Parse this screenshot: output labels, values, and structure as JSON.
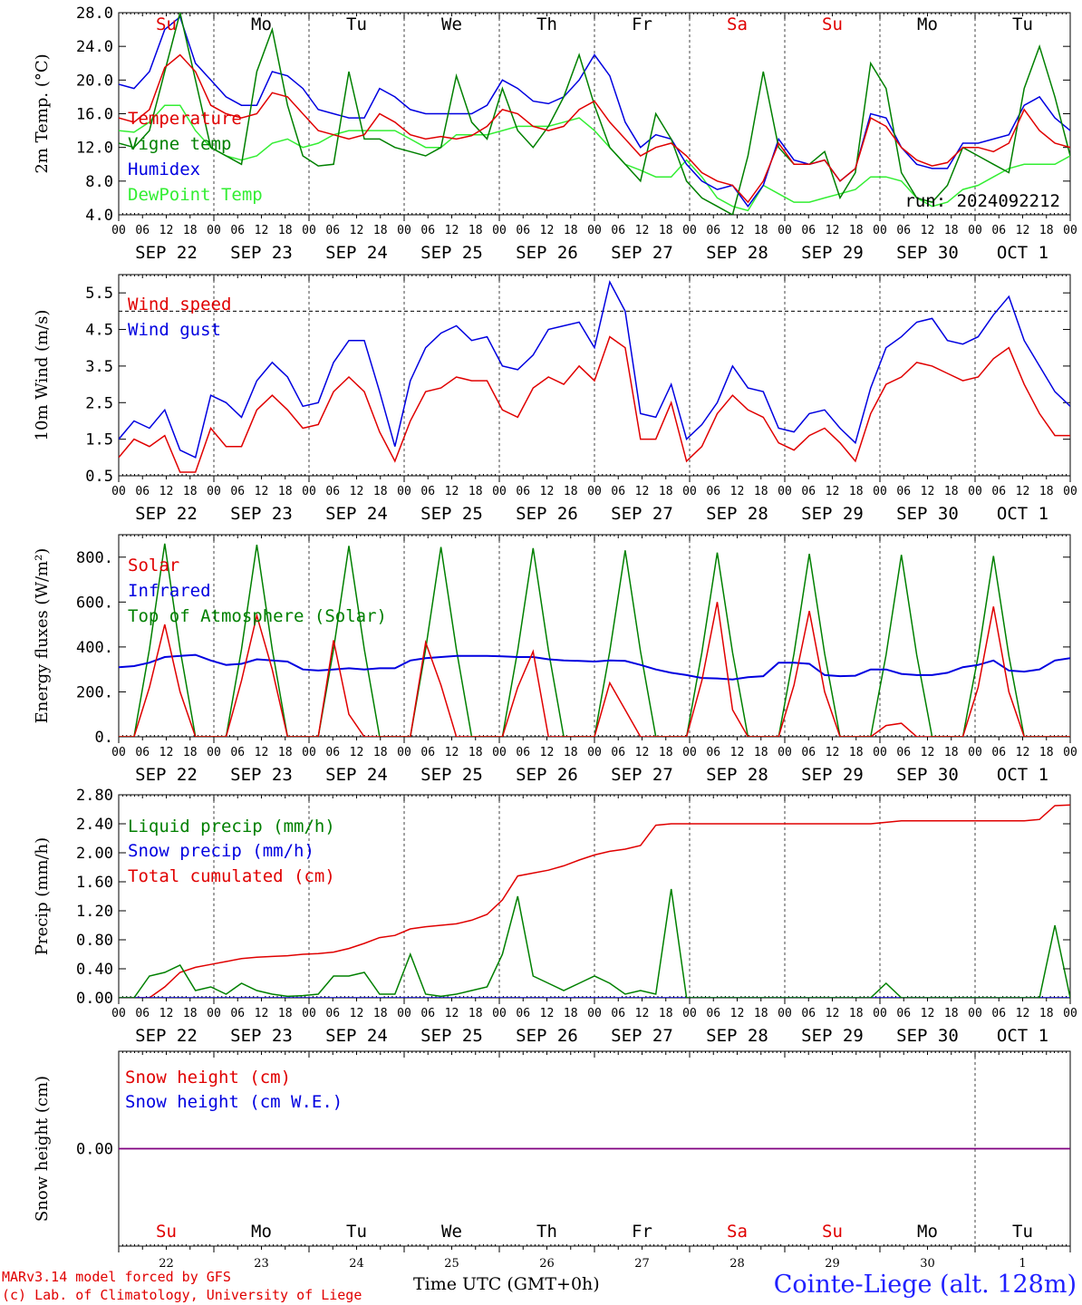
{
  "days": [
    "Su",
    "Mo",
    "Tu",
    "We",
    "Th",
    "Fr",
    "Sa",
    "Su",
    "Mo",
    "Tu"
  ],
  "weekend_days": [
    0,
    6,
    7
  ],
  "hour_ticks": [
    "00",
    "06",
    "12",
    "18"
  ],
  "date_labels": [
    "SEP 22",
    "SEP 23",
    "SEP 24",
    "SEP 25",
    "SEP 26",
    "SEP 27",
    "SEP 28",
    "SEP 29",
    "SEP 30",
    "OCT  1"
  ],
  "bottom_day_numbers": [
    "22",
    "23",
    "24",
    "25",
    "26",
    "27",
    "28",
    "29",
    "30",
    "1"
  ],
  "run_label": "run: 2024092212",
  "footer": {
    "model": "MARv3.14 model forced by GFS",
    "lab": "(c) Lab. of Climatology, University of Liege",
    "xlabel": "Time UTC (GMT+0h)",
    "station": "Cointe-Liege (alt. 128m)"
  },
  "colors": {
    "red": "#e00000",
    "green": "#008000",
    "blue": "#0000e0",
    "lightgreen": "#33ee33",
    "purple": "#800080"
  },
  "chart_data": [
    {
      "type": "line",
      "ylabel": "2m Temp. (°C)",
      "ylim": [
        4,
        28
      ],
      "yticks": [
        "28.0",
        "24.0",
        "20.0",
        "16.0",
        "12.0",
        "8.0",
        "4.0"
      ],
      "x_unit": "hours since SEP 22 00 UTC",
      "x_step_hours": 6,
      "series": [
        {
          "name": "Temperature",
          "color": "red",
          "values": [
            15.5,
            15,
            16.5,
            21.5,
            23,
            21,
            17,
            16,
            15.5,
            16,
            18.5,
            18,
            16,
            14,
            13.5,
            13,
            13.5,
            16,
            15,
            13.5,
            13,
            13.3,
            13,
            13.4,
            14.5,
            16.5,
            16,
            14.5,
            14,
            14.5,
            16.5,
            17.5,
            15,
            13,
            11,
            12,
            12.5,
            11,
            9,
            8,
            7.5,
            5.5,
            8,
            12.5,
            10,
            10,
            10.5,
            8,
            9.5,
            15.5,
            14.5,
            12,
            10.5,
            9.8,
            10.2,
            12,
            12,
            11.5,
            12.5,
            16.5,
            14,
            12.5,
            12
          ]
        },
        {
          "name": "Vigne temp",
          "color": "green",
          "values": [
            12.5,
            12,
            14,
            21,
            28,
            20,
            12,
            11,
            10,
            21,
            26,
            17,
            11,
            9.8,
            10,
            21,
            13,
            13,
            12,
            11.5,
            11,
            12,
            20.5,
            15,
            13,
            19,
            14,
            12,
            14.5,
            18,
            23,
            17,
            12,
            10,
            8,
            16,
            13,
            8,
            6,
            5,
            4,
            11,
            21,
            12,
            10,
            10,
            11.5,
            6,
            9,
            22,
            19,
            9,
            6,
            5.5,
            7.5,
            12,
            11,
            10,
            9,
            19,
            24,
            18,
            11
          ]
        },
        {
          "name": "Humidex",
          "color": "blue",
          "values": [
            19.5,
            19,
            21,
            26,
            27.5,
            22,
            20,
            18,
            17,
            17,
            21,
            20.5,
            19,
            16.5,
            16,
            15.5,
            15.5,
            19,
            18,
            16.5,
            16,
            16,
            16,
            16,
            17,
            20,
            19,
            17.5,
            17.2,
            18,
            20,
            23,
            20.5,
            15,
            12,
            13.5,
            13,
            10,
            8,
            7,
            7.5,
            5,
            7.5,
            13,
            10.5,
            10,
            10.5,
            8,
            9.5,
            16,
            15.5,
            12,
            10,
            9.5,
            9.5,
            12.5,
            12.5,
            13,
            13.5,
            17,
            18,
            15.5,
            14
          ]
        },
        {
          "name": "DewPoint Temp",
          "color": "lightgreen",
          "values": [
            14,
            13.8,
            15,
            17,
            17,
            14,
            12,
            11,
            10.5,
            11,
            12.5,
            13,
            12,
            12.5,
            13.5,
            14,
            14,
            14,
            14,
            13,
            12,
            12,
            13.5,
            13.5,
            13.5,
            14,
            14.5,
            14.5,
            14.5,
            15,
            15.5,
            14,
            12,
            10,
            9.3,
            8.5,
            8.5,
            10.5,
            8.5,
            6,
            5,
            4.5,
            7.5,
            6.5,
            5.5,
            5.5,
            6,
            6.5,
            7,
            8.5,
            8.5,
            8,
            6,
            5,
            5.5,
            7,
            7.5,
            8.5,
            9.5,
            10,
            10,
            10,
            11
          ]
        }
      ]
    },
    {
      "type": "line",
      "ylabel": "10m Wind (m/s)",
      "ylim": [
        0.5,
        6.0
      ],
      "reference_line": 5.0,
      "yticks": [
        "5.5",
        "4.5",
        "3.5",
        "2.5",
        "1.5",
        "0.5"
      ],
      "x_unit": "hours since SEP 22 00 UTC",
      "x_step_hours": 6,
      "series": [
        {
          "name": "Wind speed",
          "color": "red",
          "values": [
            1.0,
            1.5,
            1.3,
            1.6,
            0.6,
            0.6,
            1.8,
            1.3,
            1.3,
            2.3,
            2.7,
            2.3,
            1.8,
            1.9,
            2.8,
            3.2,
            2.8,
            1.7,
            0.9,
            2.0,
            2.8,
            2.9,
            3.2,
            3.1,
            3.1,
            2.3,
            2.1,
            2.9,
            3.2,
            3.0,
            3.5,
            3.1,
            4.3,
            4.0,
            1.5,
            1.5,
            2.5,
            0.9,
            1.3,
            2.2,
            2.7,
            2.3,
            2.1,
            1.4,
            1.2,
            1.6,
            1.8,
            1.4,
            0.9,
            2.2,
            3.0,
            3.2,
            3.6,
            3.5,
            3.3,
            3.1,
            3.2,
            3.7,
            4.0,
            3.0,
            2.2,
            1.6,
            1.6
          ]
        },
        {
          "name": "Wind gust",
          "color": "blue",
          "values": [
            1.5,
            2.0,
            1.8,
            2.3,
            1.2,
            1.0,
            2.7,
            2.5,
            2.1,
            3.1,
            3.6,
            3.2,
            2.4,
            2.5,
            3.6,
            4.2,
            4.2,
            2.8,
            1.3,
            3.1,
            4.0,
            4.4,
            4.6,
            4.2,
            4.3,
            3.5,
            3.4,
            3.8,
            4.5,
            4.6,
            4.7,
            4.0,
            5.8,
            5.0,
            2.2,
            2.1,
            3.0,
            1.5,
            1.9,
            2.5,
            3.5,
            2.9,
            2.8,
            1.8,
            1.7,
            2.2,
            2.3,
            1.8,
            1.4,
            2.9,
            4.0,
            4.3,
            4.7,
            4.8,
            4.2,
            4.1,
            4.3,
            4.9,
            5.4,
            4.2,
            3.5,
            2.8,
            2.4
          ]
        }
      ]
    },
    {
      "type": "line",
      "ylabel": "Energy fluxes (W/m²)",
      "ylim": [
        0,
        900
      ],
      "yticks": [
        "800.",
        "600.",
        "400.",
        "200.",
        "0."
      ],
      "x_unit": "hours since SEP 22 00 UTC",
      "x_step_hours": 6,
      "series": [
        {
          "name": "Solar",
          "color": "red",
          "values": [
            0,
            0,
            220,
            500,
            200,
            0,
            0,
            0,
            250,
            540,
            300,
            0,
            0,
            0,
            430,
            100,
            0,
            0,
            0,
            0,
            420,
            230,
            0,
            0,
            0,
            0,
            220,
            380,
            0,
            0,
            0,
            0,
            240,
            120,
            0,
            0,
            0,
            0,
            250,
            600,
            120,
            0,
            0,
            0,
            230,
            560,
            200,
            0,
            0,
            0,
            50,
            60,
            0,
            0,
            0,
            0,
            220,
            580,
            200,
            0,
            0,
            0,
            0
          ]
        },
        {
          "name": "Infrared",
          "color": "blue",
          "values": [
            310,
            315,
            330,
            355,
            360,
            365,
            340,
            320,
            325,
            345,
            340,
            335,
            300,
            295,
            300,
            305,
            300,
            305,
            305,
            340,
            350,
            355,
            360,
            360,
            360,
            358,
            355,
            355,
            345,
            340,
            338,
            335,
            340,
            338,
            320,
            300,
            285,
            275,
            262,
            260,
            255,
            265,
            270,
            330,
            330,
            325,
            275,
            270,
            272,
            300,
            300,
            280,
            275,
            275,
            285,
            310,
            320,
            340,
            295,
            290,
            300,
            340,
            350
          ]
        },
        {
          "name": "Top of Atmosphere (Solar)",
          "color": "green",
          "values": [
            0,
            0,
            390,
            860,
            390,
            0,
            0,
            0,
            390,
            855,
            390,
            0,
            0,
            0,
            390,
            850,
            390,
            0,
            0,
            0,
            390,
            845,
            390,
            0,
            0,
            0,
            385,
            840,
            385,
            0,
            0,
            0,
            380,
            830,
            380,
            0,
            0,
            0,
            375,
            820,
            375,
            0,
            0,
            0,
            370,
            815,
            370,
            0,
            0,
            0,
            365,
            810,
            365,
            0,
            0,
            0,
            360,
            805,
            360,
            0,
            0,
            0,
            0
          ]
        }
      ]
    },
    {
      "type": "line",
      "ylabel": "Precip (mm/h)",
      "ylim": [
        0,
        2.8
      ],
      "yticks": [
        "2.80",
        "2.40",
        "2.00",
        "1.60",
        "1.20",
        "0.80",
        "0.40",
        "0.00"
      ],
      "x_unit": "hours since SEP 22 00 UTC",
      "x_step_hours": 6,
      "series": [
        {
          "name": "Liquid precip (mm/h)",
          "color": "green",
          "values": [
            0,
            0,
            0.3,
            0.35,
            0.45,
            0.1,
            0.15,
            0.05,
            0.2,
            0.1,
            0.05,
            0.02,
            0.03,
            0.05,
            0.3,
            0.3,
            0.35,
            0.05,
            0.05,
            0.6,
            0.05,
            0.02,
            0.05,
            0.1,
            0.15,
            0.6,
            1.4,
            0.3,
            0.2,
            0.1,
            0.2,
            0.3,
            0.2,
            0.05,
            0.1,
            0.05,
            1.5,
            0,
            0,
            0,
            0,
            0,
            0,
            0,
            0,
            0,
            0,
            0,
            0,
            0,
            0.2,
            0,
            0,
            0,
            0,
            0,
            0,
            0,
            0,
            0,
            0,
            1.0,
            0
          ]
        },
        {
          "name": "Snow precip (mm/h)",
          "color": "blue",
          "values": [
            0,
            0,
            0,
            0,
            0,
            0,
            0,
            0,
            0,
            0,
            0,
            0,
            0,
            0,
            0,
            0,
            0,
            0,
            0,
            0,
            0,
            0,
            0,
            0,
            0,
            0,
            0,
            0,
            0,
            0,
            0,
            0,
            0,
            0,
            0,
            0,
            0,
            0,
            0,
            0,
            0,
            0,
            0,
            0,
            0,
            0,
            0,
            0,
            0,
            0,
            0,
            0,
            0,
            0,
            0,
            0,
            0,
            0,
            0,
            0,
            0,
            0,
            0
          ]
        },
        {
          "name": "Total cumulated (cm)",
          "color": "red",
          "values": [
            0,
            0,
            0,
            0.15,
            0.35,
            0.42,
            0.46,
            0.5,
            0.54,
            0.56,
            0.57,
            0.58,
            0.6,
            0.61,
            0.63,
            0.68,
            0.75,
            0.83,
            0.86,
            0.95,
            0.98,
            1.0,
            1.02,
            1.07,
            1.15,
            1.35,
            1.68,
            1.72,
            1.76,
            1.82,
            1.9,
            1.97,
            2.02,
            2.05,
            2.1,
            2.38,
            2.4,
            2.4,
            2.4,
            2.4,
            2.4,
            2.4,
            2.4,
            2.4,
            2.4,
            2.4,
            2.4,
            2.4,
            2.4,
            2.4,
            2.42,
            2.44,
            2.44,
            2.44,
            2.44,
            2.44,
            2.44,
            2.44,
            2.44,
            2.44,
            2.46,
            2.65,
            2.66
          ]
        }
      ]
    },
    {
      "type": "line",
      "ylabel": "Snow height (cm)",
      "ylim": [
        -1,
        1
      ],
      "yticks": [
        "0.00"
      ],
      "x_unit": "hours since SEP 22 00 UTC",
      "x_step_hours": 6,
      "series": [
        {
          "name": "Snow height (cm)",
          "color": "red",
          "values": [
            0,
            0
          ]
        },
        {
          "name": "Snow height (cm W.E.)",
          "color": "blue",
          "values": [
            0,
            0
          ]
        }
      ]
    }
  ]
}
